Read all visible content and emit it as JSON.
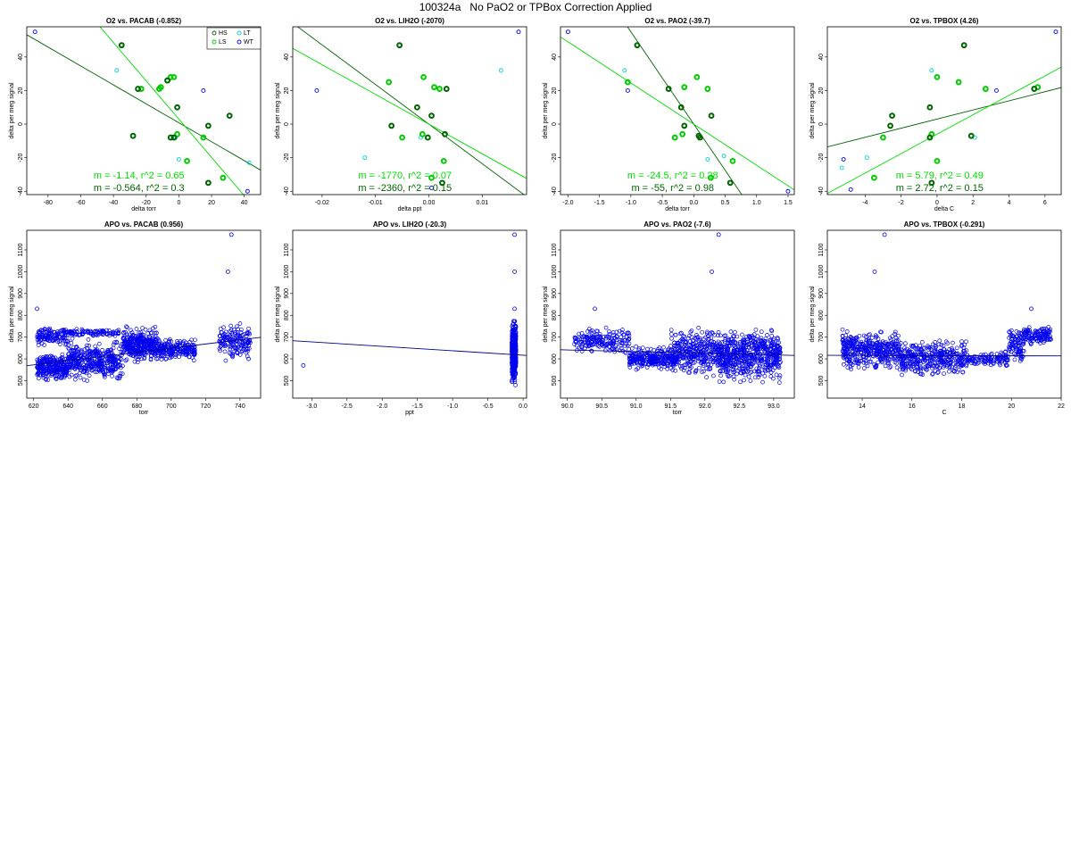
{
  "title": "100324a   No PaO2 or TPBox Correction Applied",
  "colors": {
    "HS": "#006400",
    "LS": "#00cc00",
    "LT": "#00d5d5",
    "WT": "#0000ee",
    "lineDark": "#006400",
    "lineLight": "#00dd00",
    "apo": "#0000ee"
  },
  "legend": {
    "HS": "HS",
    "LS": "LS",
    "LT": "LT",
    "WT": "WT"
  },
  "chart_data": [
    {
      "type": "scatter",
      "title": "O2 vs. PACAB (-0.852)",
      "xlabel": "delta torr",
      "ylabel": "delta per meg signal",
      "xlim": [
        -93,
        50
      ],
      "ylim": [
        -42,
        58
      ],
      "xticks": [
        -80,
        -60,
        -40,
        -20,
        0,
        20,
        40
      ],
      "yticks": [
        -40,
        -20,
        0,
        20,
        40
      ],
      "legend": true,
      "points": {
        "HS": [
          [
            -35,
            47
          ],
          [
            -28,
            -7
          ],
          [
            -25,
            21
          ],
          [
            -7,
            26
          ],
          [
            -5,
            -8
          ],
          [
            -1,
            10
          ],
          [
            18,
            -1
          ],
          [
            18,
            -35
          ],
          [
            31,
            5
          ],
          [
            -3,
            -8
          ]
        ],
        "LS": [
          [
            -23,
            21
          ],
          [
            -12,
            21
          ],
          [
            -11,
            22
          ],
          [
            -5,
            28
          ],
          [
            -3,
            28
          ],
          [
            -7,
            26
          ],
          [
            -1,
            -6
          ],
          [
            5,
            -22
          ],
          [
            15,
            -8
          ],
          [
            27,
            -32
          ]
        ],
        "LT": [
          [
            -38,
            32
          ],
          [
            43,
            -23
          ],
          [
            -2,
            -8
          ],
          [
            0,
            -21
          ]
        ],
        "WT": [
          [
            -88,
            55
          ],
          [
            15,
            20
          ],
          [
            42,
            -40
          ]
        ]
      },
      "lines": [
        {
          "kind": "dark",
          "m": -0.564,
          "b": 0.8
        },
        {
          "kind": "light",
          "m": -1.14,
          "b": 3.0
        }
      ],
      "annotations": [
        {
          "text": "m = -1.14, r^2 = 0.65",
          "kind": "light"
        },
        {
          "text": "m = -0.564, r^2 = 0.3",
          "kind": "dark"
        }
      ]
    },
    {
      "type": "scatter",
      "title": "O2 vs. LIH2O (-2070)",
      "xlabel": "delta ppt",
      "ylabel": "delta per meg signal",
      "xlim": [
        -0.0255,
        0.0183
      ],
      "ylim": [
        -42,
        58
      ],
      "xticks": [
        -0.02,
        -0.01,
        0.0,
        0.01
      ],
      "xtick_labels": [
        "-0.02",
        "-0.01",
        "0.00",
        "0.01"
      ],
      "yticks": [
        -40,
        -20,
        0,
        20,
        40
      ],
      "legend": false,
      "points": {
        "HS": [
          [
            -0.0055,
            47
          ],
          [
            -0.007,
            -1
          ],
          [
            -0.0022,
            10
          ],
          [
            0.0005,
            5
          ],
          [
            0.0033,
            21
          ],
          [
            0.0025,
            -35
          ],
          [
            -0.0002,
            -8
          ],
          [
            0.003,
            -6
          ]
        ],
        "LS": [
          [
            -0.0075,
            25
          ],
          [
            -0.005,
            -8
          ],
          [
            -0.0012,
            -6
          ],
          [
            -0.001,
            28
          ],
          [
            0.001,
            22
          ],
          [
            0.002,
            21
          ],
          [
            0.0028,
            -22
          ],
          [
            0.0005,
            -32
          ]
        ],
        "LT": [
          [
            -0.012,
            -20
          ],
          [
            0.0135,
            32
          ],
          [
            -0.0015,
            -8
          ]
        ],
        "WT": [
          [
            -0.021,
            20
          ],
          [
            0.0168,
            55
          ],
          [
            0.0005,
            -38
          ]
        ]
      },
      "lines": [
        {
          "kind": "dark",
          "m": -2360,
          "b": 0.0
        },
        {
          "kind": "light",
          "m": -1770,
          "b": 0.0
        }
      ],
      "annotations": [
        {
          "text": "m = -1770, r^2 = 0.07",
          "kind": "light"
        },
        {
          "text": "m = -2360, r^2 = 0.15",
          "kind": "dark"
        }
      ]
    },
    {
      "type": "scatter",
      "title": "O2 vs. PAO2 (-39.7)",
      "xlabel": "delta torr",
      "ylabel": "delta per meg signal",
      "xlim": [
        -2.12,
        1.6
      ],
      "ylim": [
        -42,
        58
      ],
      "xticks": [
        -2.0,
        -1.5,
        -1.0,
        -0.5,
        0.0,
        0.5,
        1.0,
        1.5
      ],
      "xtick_labels": [
        "-2.0",
        "-1.5",
        "-1.0",
        "-0.5",
        "0.0",
        "0.5",
        "1.0",
        "1.5"
      ],
      "yticks": [
        -40,
        -20,
        0,
        20,
        40
      ],
      "legend": false,
      "points": {
        "HS": [
          [
            -0.9,
            47
          ],
          [
            -0.4,
            21
          ],
          [
            -0.2,
            10
          ],
          [
            -0.15,
            -1
          ],
          [
            0.08,
            -7
          ],
          [
            0.1,
            -8
          ],
          [
            0.28,
            5
          ],
          [
            0.58,
            -35
          ]
        ],
        "LS": [
          [
            -1.05,
            25
          ],
          [
            -0.3,
            -8
          ],
          [
            -0.18,
            -6
          ],
          [
            -0.15,
            22
          ],
          [
            0.05,
            28
          ],
          [
            0.22,
            21
          ],
          [
            0.27,
            -32
          ],
          [
            0.62,
            -22
          ]
        ],
        "LT": [
          [
            -1.1,
            32
          ],
          [
            0.48,
            -19
          ],
          [
            0.22,
            -21
          ]
        ],
        "WT": [
          [
            -2.0,
            55
          ],
          [
            -1.05,
            20
          ],
          [
            1.5,
            -40
          ]
        ]
      },
      "lines": [
        {
          "kind": "dark",
          "m": -55.0,
          "b": 0.0
        },
        {
          "kind": "light",
          "m": -24.5,
          "b": 0.0
        }
      ],
      "annotations": [
        {
          "text": "m = -24.5, r^2 = 0.28",
          "kind": "light"
        },
        {
          "text": "m = -55, r^2 = 0.98",
          "kind": "dark"
        }
      ]
    },
    {
      "type": "scatter",
      "title": "O2 vs. TPBOX (4.26)",
      "xlabel": "delta C",
      "ylabel": "delta per meg signal",
      "xlim": [
        -6.1,
        6.9
      ],
      "ylim": [
        -42,
        58
      ],
      "xticks": [
        -4,
        -2,
        0,
        2,
        4,
        6
      ],
      "yticks": [
        -40,
        -20,
        0,
        20,
        40
      ],
      "legend": false,
      "points": {
        "HS": [
          [
            -2.5,
            5
          ],
          [
            -2.6,
            -1
          ],
          [
            -0.4,
            10
          ],
          [
            -0.4,
            -8
          ],
          [
            1.5,
            47
          ],
          [
            1.9,
            -7
          ],
          [
            5.4,
            21
          ],
          [
            -0.3,
            -35
          ]
        ],
        "LS": [
          [
            -3.0,
            -8
          ],
          [
            -3.5,
            -32
          ],
          [
            -0.3,
            -6
          ],
          [
            0.0,
            28
          ],
          [
            1.2,
            25
          ],
          [
            2.7,
            21
          ],
          [
            5.6,
            22
          ],
          [
            0.0,
            -22
          ]
        ],
        "LT": [
          [
            -3.9,
            -20
          ],
          [
            -0.3,
            32
          ],
          [
            2.1,
            -8
          ],
          [
            -5.3,
            -26
          ]
        ],
        "WT": [
          [
            -5.2,
            -21
          ],
          [
            -4.8,
            -39
          ],
          [
            3.3,
            20
          ],
          [
            6.6,
            55
          ]
        ]
      },
      "lines": [
        {
          "kind": "dark",
          "m": 2.72,
          "b": 3.0
        },
        {
          "kind": "light",
          "m": 5.79,
          "b": -6.0
        }
      ],
      "annotations": [
        {
          "text": "m = 5.79, r^2 = 0.49",
          "kind": "light"
        },
        {
          "text": "m = 2.72, r^2 = 0.15",
          "kind": "dark"
        }
      ]
    },
    {
      "type": "scatter",
      "title": "APO vs. PACAB (0.956)",
      "xlabel": "torr",
      "ylabel": "delta per meg signal",
      "xlim": [
        616,
        752
      ],
      "ylim": [
        420,
        1190
      ],
      "xticks": [
        620,
        640,
        660,
        680,
        700,
        720,
        740
      ],
      "yticks": [
        500,
        600,
        700,
        800,
        900,
        1000,
        1100
      ],
      "line": {
        "m": 0.956,
        "b": -20
      },
      "clusters": [
        {
          "x": [
            622,
            640
          ],
          "y": [
            490,
            640
          ],
          "n": 260
        },
        {
          "x": [
            622,
            640
          ],
          "y": [
            650,
            760
          ],
          "n": 120
        },
        {
          "x": [
            640,
            672
          ],
          "y": [
            480,
            700
          ],
          "n": 380
        },
        {
          "x": [
            640,
            670
          ],
          "y": [
            700,
            740
          ],
          "n": 90
        },
        {
          "x": [
            672,
            692
          ],
          "y": [
            570,
            760
          ],
          "n": 320
        },
        {
          "x": [
            692,
            714
          ],
          "y": [
            580,
            700
          ],
          "n": 200
        },
        {
          "x": [
            728,
            746
          ],
          "y": [
            570,
            780
          ],
          "n": 150
        }
      ],
      "outliers": [
        [
          622,
          830
        ],
        [
          733,
          1000
        ],
        [
          735,
          1170
        ],
        [
          745,
          600
        ]
      ]
    },
    {
      "type": "scatter",
      "title": "APO vs. LIH2O (-20.3)",
      "xlabel": "ppt",
      "ylabel": "delta per meg signal",
      "xlim": [
        -3.27,
        0.05
      ],
      "ylim": [
        420,
        1190
      ],
      "xticks": [
        -3.0,
        -2.5,
        -2.0,
        -1.5,
        -1.0,
        -0.5,
        0.0
      ],
      "xtick_labels": [
        "-3.0",
        "-2.5",
        "-2.0",
        "-1.5",
        "-1.0",
        "-0.5",
        "0.0"
      ],
      "yticks": [
        500,
        600,
        700,
        800,
        900,
        1000,
        1100
      ],
      "line": {
        "m": -20.3,
        "b": 617
      },
      "clusters": [
        {
          "x": [
            -0.16,
            -0.1
          ],
          "y": [
            460,
            800
          ],
          "n": 520
        }
      ],
      "outliers": [
        [
          -3.12,
          570
        ],
        [
          -0.12,
          1000
        ],
        [
          -0.12,
          1170
        ],
        [
          -0.12,
          830
        ]
      ]
    },
    {
      "type": "scatter",
      "title": "APO vs. PAO2 (-7.6)",
      "xlabel": "torr",
      "ylabel": "delta per meg signal",
      "xlim": [
        89.9,
        93.3
      ],
      "ylim": [
        420,
        1190
      ],
      "xticks": [
        90.0,
        90.5,
        91.0,
        91.5,
        92.0,
        92.5,
        93.0
      ],
      "xtick_labels": [
        "90.0",
        "90.5",
        "91.0",
        "91.5",
        "92.0",
        "92.5",
        "93.0"
      ],
      "yticks": [
        500,
        600,
        700,
        800,
        900,
        1000,
        1100
      ],
      "line": {
        "m": -7.6,
        "b": 1325
      },
      "clusters": [
        {
          "x": [
            90.1,
            90.9
          ],
          "y": [
            610,
            760
          ],
          "n": 180
        },
        {
          "x": [
            90.9,
            91.6
          ],
          "y": [
            540,
            660
          ],
          "n": 260
        },
        {
          "x": [
            91.5,
            92.2
          ],
          "y": [
            500,
            760
          ],
          "n": 320
        },
        {
          "x": [
            92.2,
            93.1
          ],
          "y": [
            470,
            760
          ],
          "n": 560
        }
      ],
      "outliers": [
        [
          90.4,
          830
        ],
        [
          92.1,
          1000
        ],
        [
          92.2,
          1170
        ]
      ]
    },
    {
      "type": "scatter",
      "title": "APO vs. TPBOX (-0.291)",
      "xlabel": "C",
      "ylabel": "delta per meg signal",
      "xlim": [
        12.6,
        22.0
      ],
      "ylim": [
        420,
        1190
      ],
      "xticks": [
        14,
        16,
        18,
        20,
        22
      ],
      "yticks": [
        500,
        600,
        700,
        800,
        900,
        1000,
        1100
      ],
      "line": {
        "m": -0.291,
        "b": 620
      },
      "clusters": [
        {
          "x": [
            13.2,
            15.5
          ],
          "y": [
            520,
            760
          ],
          "n": 380
        },
        {
          "x": [
            15.5,
            18.2
          ],
          "y": [
            500,
            700
          ],
          "n": 360
        },
        {
          "x": [
            18.2,
            19.2
          ],
          "y": [
            560,
            630
          ],
          "n": 60
        },
        {
          "x": [
            19.2,
            19.9
          ],
          "y": [
            560,
            640
          ],
          "n": 50
        },
        {
          "x": [
            19.9,
            20.5
          ],
          "y": [
            560,
            760
          ],
          "n": 90
        },
        {
          "x": [
            20.5,
            21.6
          ],
          "y": [
            650,
            760
          ],
          "n": 110
        }
      ],
      "outliers": [
        [
          14.5,
          1000
        ],
        [
          14.9,
          1170
        ],
        [
          20.8,
          830
        ]
      ]
    }
  ]
}
